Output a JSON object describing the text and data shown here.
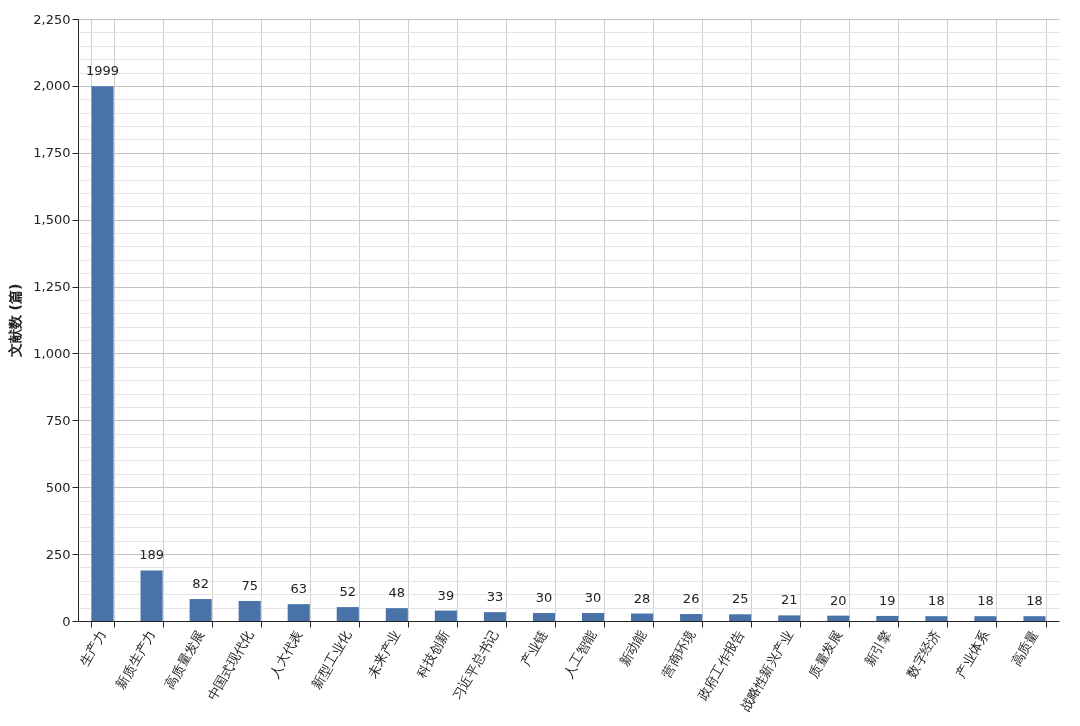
{
  "chart_data": {
    "type": "bar",
    "ylabel": "文献数 (篇)",
    "categories": [
      "生产力",
      "新质生产力",
      "高质量发展",
      "中国式现代化",
      "人大代表",
      "新型工业化",
      "未来产业",
      "科技创新",
      "习近平总书记",
      "产业链",
      "人工智能",
      "新动能",
      "营商环境",
      "政府工作报告",
      "战略性新兴产业",
      "质量发展",
      "新引擎",
      "数字经济",
      "产业体系",
      "高质量"
    ],
    "values": [
      1999,
      189,
      82,
      75,
      63,
      52,
      48,
      39,
      33,
      30,
      30,
      28,
      26,
      25,
      21,
      20,
      19,
      18,
      18,
      18
    ],
    "color": "#4872a8",
    "ylim": [
      0,
      2250
    ],
    "yticks": [
      {
        "value": 0,
        "label": "0"
      },
      {
        "value": 50,
        "label": null
      },
      {
        "value": 100,
        "label": null
      },
      {
        "value": 150,
        "label": null
      },
      {
        "value": 200,
        "label": null
      },
      {
        "value": 250,
        "label": "250"
      },
      {
        "value": 300,
        "label": null
      },
      {
        "value": 350,
        "label": null
      },
      {
        "value": 400,
        "label": null
      },
      {
        "value": 450,
        "label": null
      },
      {
        "value": 500,
        "label": "500"
      },
      {
        "value": 550,
        "label": null
      },
      {
        "value": 600,
        "label": null
      },
      {
        "value": 650,
        "label": null
      },
      {
        "value": 700,
        "label": null
      },
      {
        "value": 750,
        "label": "750"
      },
      {
        "value": 800,
        "label": null
      },
      {
        "value": 850,
        "label": null
      },
      {
        "value": 900,
        "label": null
      },
      {
        "value": 950,
        "label": null
      },
      {
        "value": 1000,
        "label": "1,000"
      },
      {
        "value": 1050,
        "label": null
      },
      {
        "value": 1100,
        "label": null
      },
      {
        "value": 1150,
        "label": null
      },
      {
        "value": 1200,
        "label": null
      },
      {
        "value": 1250,
        "label": "1,250"
      },
      {
        "value": 1300,
        "label": null
      },
      {
        "value": 1350,
        "label": null
      },
      {
        "value": 1400,
        "label": null
      },
      {
        "value": 1450,
        "label": null
      },
      {
        "value": 1500,
        "label": "1,500"
      },
      {
        "value": 1550,
        "label": null
      },
      {
        "value": 1600,
        "label": null
      },
      {
        "value": 1650,
        "label": null
      },
      {
        "value": 1700,
        "label": null
      },
      {
        "value": 1750,
        "label": "1,750"
      },
      {
        "value": 1800,
        "label": null
      },
      {
        "value": 1850,
        "label": null
      },
      {
        "value": 1900,
        "label": null
      },
      {
        "value": 1950,
        "label": null
      },
      {
        "value": 2000,
        "label": "2,000"
      },
      {
        "value": 2050,
        "label": null
      },
      {
        "value": 2100,
        "label": null
      },
      {
        "value": 2150,
        "label": null
      },
      {
        "value": 2200,
        "label": null
      },
      {
        "value": 2250,
        "label": "2,250"
      }
    ],
    "grid": true,
    "data_labels": true
  }
}
